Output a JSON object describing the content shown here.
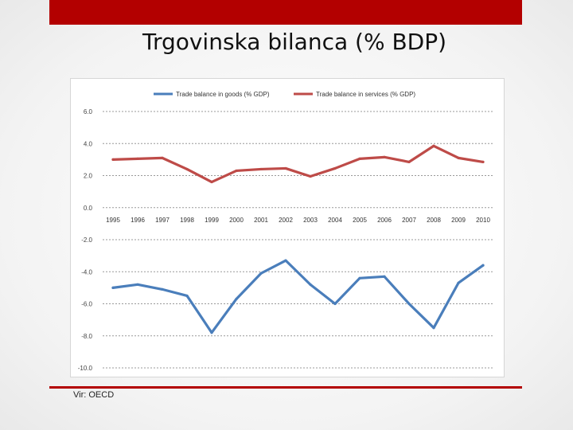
{
  "slide": {
    "title": "Trgovinska bilanca (% BDP)",
    "source": "Vir: OECD"
  },
  "colors": {
    "accent": "#b30000",
    "goods": "#4a7ebb",
    "services": "#be4b48"
  },
  "chart_data": {
    "type": "line",
    "title": "",
    "xlabel": "",
    "ylabel": "",
    "x": [
      "1995",
      "1996",
      "1997",
      "1998",
      "1999",
      "2000",
      "2001",
      "2002",
      "2003",
      "2004",
      "2005",
      "2006",
      "2007",
      "2008",
      "2009",
      "2010"
    ],
    "ylim": [
      -10,
      6
    ],
    "yticks": [
      6,
      4,
      2,
      0,
      -2,
      -4,
      -6,
      -8,
      -10
    ],
    "ytick_labels": [
      "6.0",
      "4.0",
      "2.0",
      "0.0",
      "-2.0",
      "-4.0",
      "-6.0",
      "-8.0",
      "-10.0"
    ],
    "grid": true,
    "legend": "top",
    "series": [
      {
        "name": "Trade balance in goods (% GDP)",
        "color": "#4a7ebb",
        "values": [
          -5.0,
          -4.8,
          -5.1,
          -5.5,
          -7.8,
          -5.7,
          -4.1,
          -3.3,
          -4.8,
          -6.0,
          -4.4,
          -4.3,
          -6.0,
          -7.5,
          -4.7,
          -3.6
        ]
      },
      {
        "name": "Trade balance in services (% GDP)",
        "color": "#be4b48",
        "values": [
          3.0,
          3.05,
          3.1,
          2.4,
          1.6,
          2.3,
          2.4,
          2.45,
          1.95,
          2.45,
          3.05,
          3.15,
          2.85,
          3.85,
          3.1,
          2.85
        ]
      }
    ]
  }
}
